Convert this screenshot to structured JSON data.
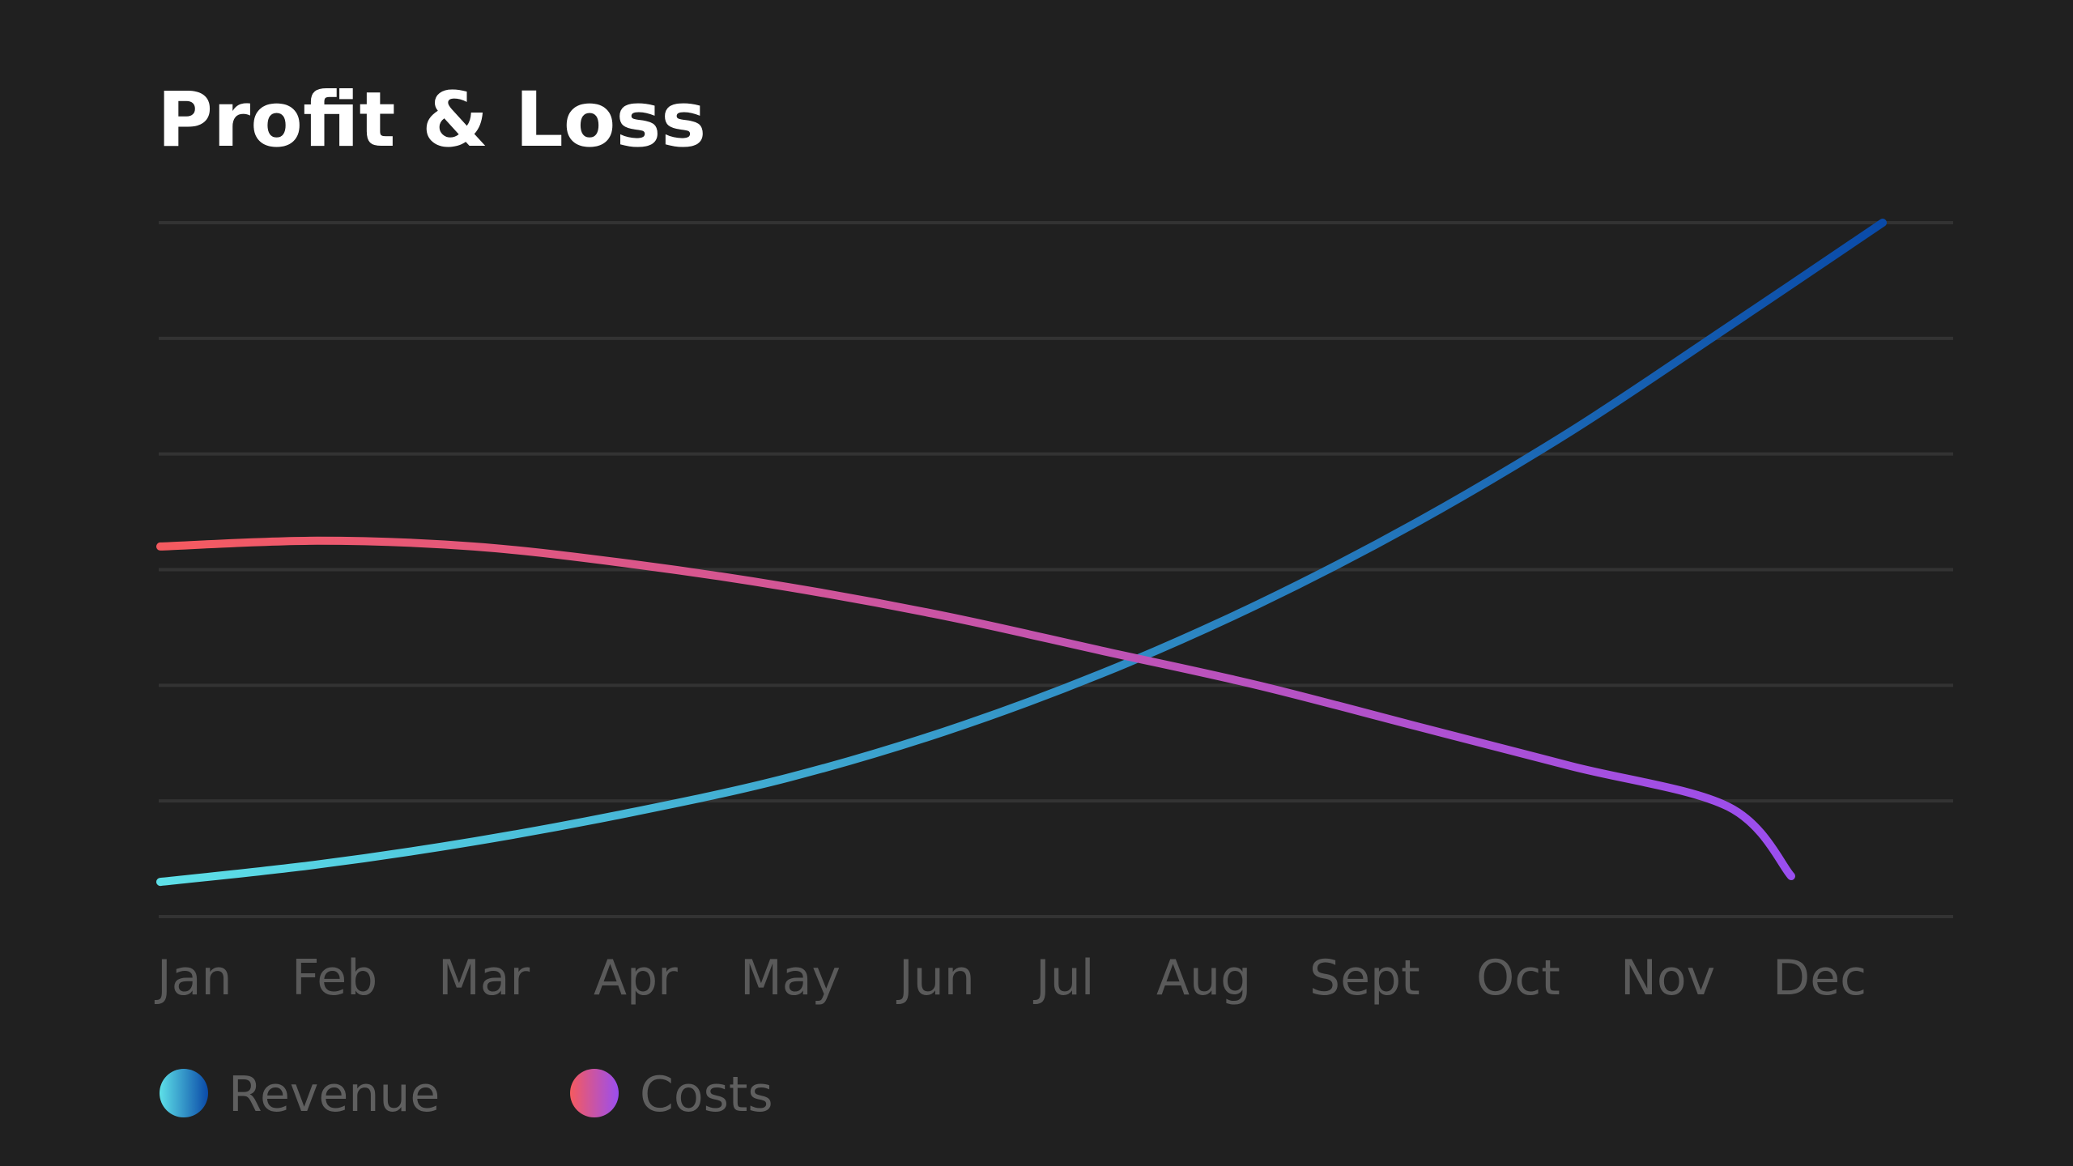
{
  "chart_data": {
    "type": "line",
    "title": "Profit & Loss",
    "xlabel": "",
    "ylabel": "",
    "categories": [
      "Jan",
      "Feb",
      "Mar",
      "Apr",
      "May",
      "Jun",
      "Jul",
      "Aug",
      "Sept",
      "Oct",
      "Nov",
      "Dec"
    ],
    "ylim": [
      0,
      6
    ],
    "y_gridlines": [
      0,
      1,
      2,
      3,
      4,
      5,
      6
    ],
    "grid": true,
    "legend": "bottom-left",
    "series": [
      {
        "name": "Revenue",
        "values": [
          0.3,
          0.45,
          0.65,
          0.9,
          1.2,
          1.6,
          2.1,
          2.7,
          3.4,
          4.2,
          5.1,
          6.0
        ],
        "color_start": "#5ee0e8",
        "color_end": "#0a4aa8"
      },
      {
        "name": "Costs",
        "values": [
          3.2,
          3.25,
          3.2,
          3.05,
          2.85,
          2.6,
          2.3,
          2.0,
          1.65,
          1.3,
          0.95,
          0.35
        ],
        "color_start": "#f55a5f",
        "color_end": "#9a4ef0"
      }
    ]
  }
}
